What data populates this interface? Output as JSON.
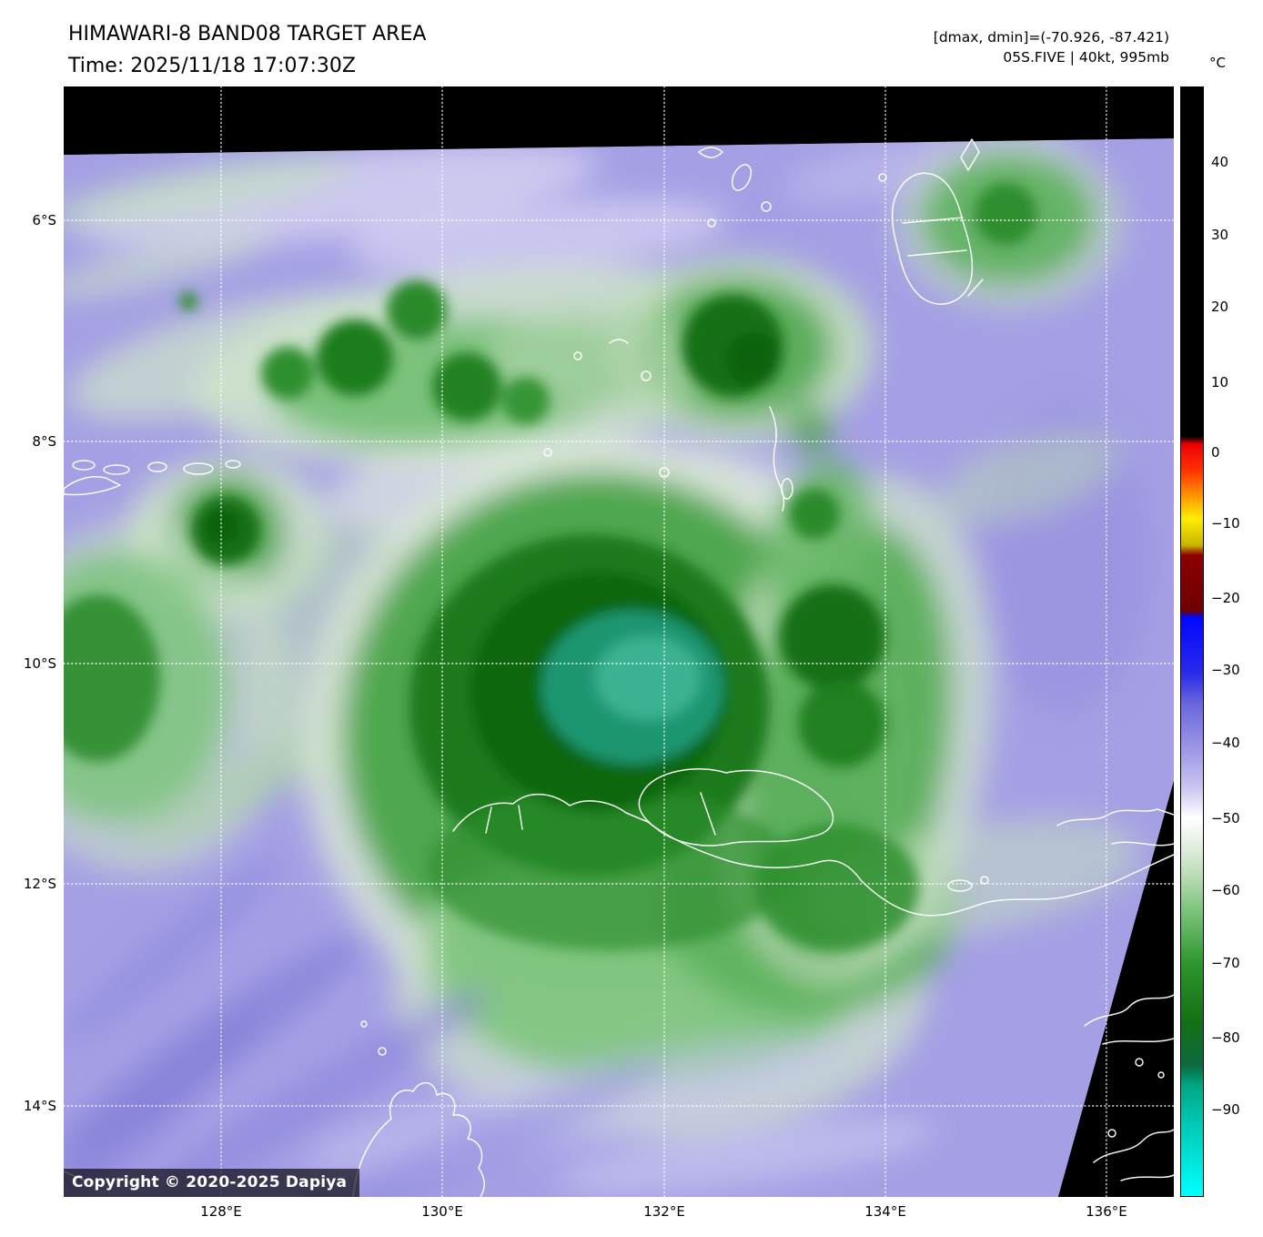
{
  "header": {
    "title": "HIMAWARI-8 BAND08 TARGET AREA",
    "time": "Time: 2025/11/18 17:07:30Z",
    "range": "[dmax, dmin]=(-70.926, -87.421)",
    "storm": "05S.FIVE | 40kt, 995mb"
  },
  "map": {
    "copyright": "Copyright © 2020-2025 Dapiya",
    "lat_ticks": [
      {
        "label": "6°S",
        "f": 0.1205
      },
      {
        "label": "8°S",
        "f": 0.3197
      },
      {
        "label": "10°S",
        "f": 0.5197
      },
      {
        "label": "12°S",
        "f": 0.718
      },
      {
        "label": "14°S",
        "f": 0.918
      }
    ],
    "lon_ticks": [
      {
        "label": "128°E",
        "f": 0.1418
      },
      {
        "label": "130°E",
        "f": 0.341
      },
      {
        "label": "132°E",
        "f": 0.541
      },
      {
        "label": "134°E",
        "f": 0.7402
      },
      {
        "label": "136°E",
        "f": 0.9393
      }
    ]
  },
  "colorbar": {
    "unit": "°C",
    "ticks": [
      {
        "label": "40",
        "f": 0.068
      },
      {
        "label": "30",
        "f": 0.1336
      },
      {
        "label": "20",
        "f": 0.1984
      },
      {
        "label": "10",
        "f": 0.2664
      },
      {
        "label": "0",
        "f": 0.3295
      },
      {
        "label": "−10",
        "f": 0.3934
      },
      {
        "label": "−20",
        "f": 0.4607
      },
      {
        "label": "−30",
        "f": 0.5254
      },
      {
        "label": "−40",
        "f": 0.591
      },
      {
        "label": "−50",
        "f": 0.659
      },
      {
        "label": "−60",
        "f": 0.7238
      },
      {
        "label": "−70",
        "f": 0.7893
      },
      {
        "label": "−80",
        "f": 0.8566
      },
      {
        "label": "−90",
        "f": 0.9213
      }
    ],
    "gradient": [
      {
        "f": 0.0,
        "color": "#000000"
      },
      {
        "f": 0.315,
        "color": "#000000"
      },
      {
        "f": 0.322,
        "color": "#ee0000"
      },
      {
        "f": 0.345,
        "color": "#ff3000"
      },
      {
        "f": 0.363,
        "color": "#ff7e00"
      },
      {
        "f": 0.389,
        "color": "#ffee00"
      },
      {
        "f": 0.413,
        "color": "#c8b400"
      },
      {
        "f": 0.422,
        "color": "#8b0000"
      },
      {
        "f": 0.472,
        "color": "#6e0000"
      },
      {
        "f": 0.478,
        "color": "#0008ff"
      },
      {
        "f": 0.528,
        "color": "#2a2ae8"
      },
      {
        "f": 0.556,
        "color": "#6a66dd"
      },
      {
        "f": 0.606,
        "color": "#a8a3e8"
      },
      {
        "f": 0.632,
        "color": "#cac7f0"
      },
      {
        "f": 0.659,
        "color": "#ffffff"
      },
      {
        "f": 0.683,
        "color": "#e4f0e2"
      },
      {
        "f": 0.712,
        "color": "#b9dcb4"
      },
      {
        "f": 0.742,
        "color": "#7cc47c"
      },
      {
        "f": 0.79,
        "color": "#2e962e"
      },
      {
        "f": 0.842,
        "color": "#147014"
      },
      {
        "f": 0.882,
        "color": "#0b6b40"
      },
      {
        "f": 0.901,
        "color": "#00a884"
      },
      {
        "f": 0.935,
        "color": "#00c8b4"
      },
      {
        "f": 1.0,
        "color": "#00ffff"
      }
    ]
  }
}
